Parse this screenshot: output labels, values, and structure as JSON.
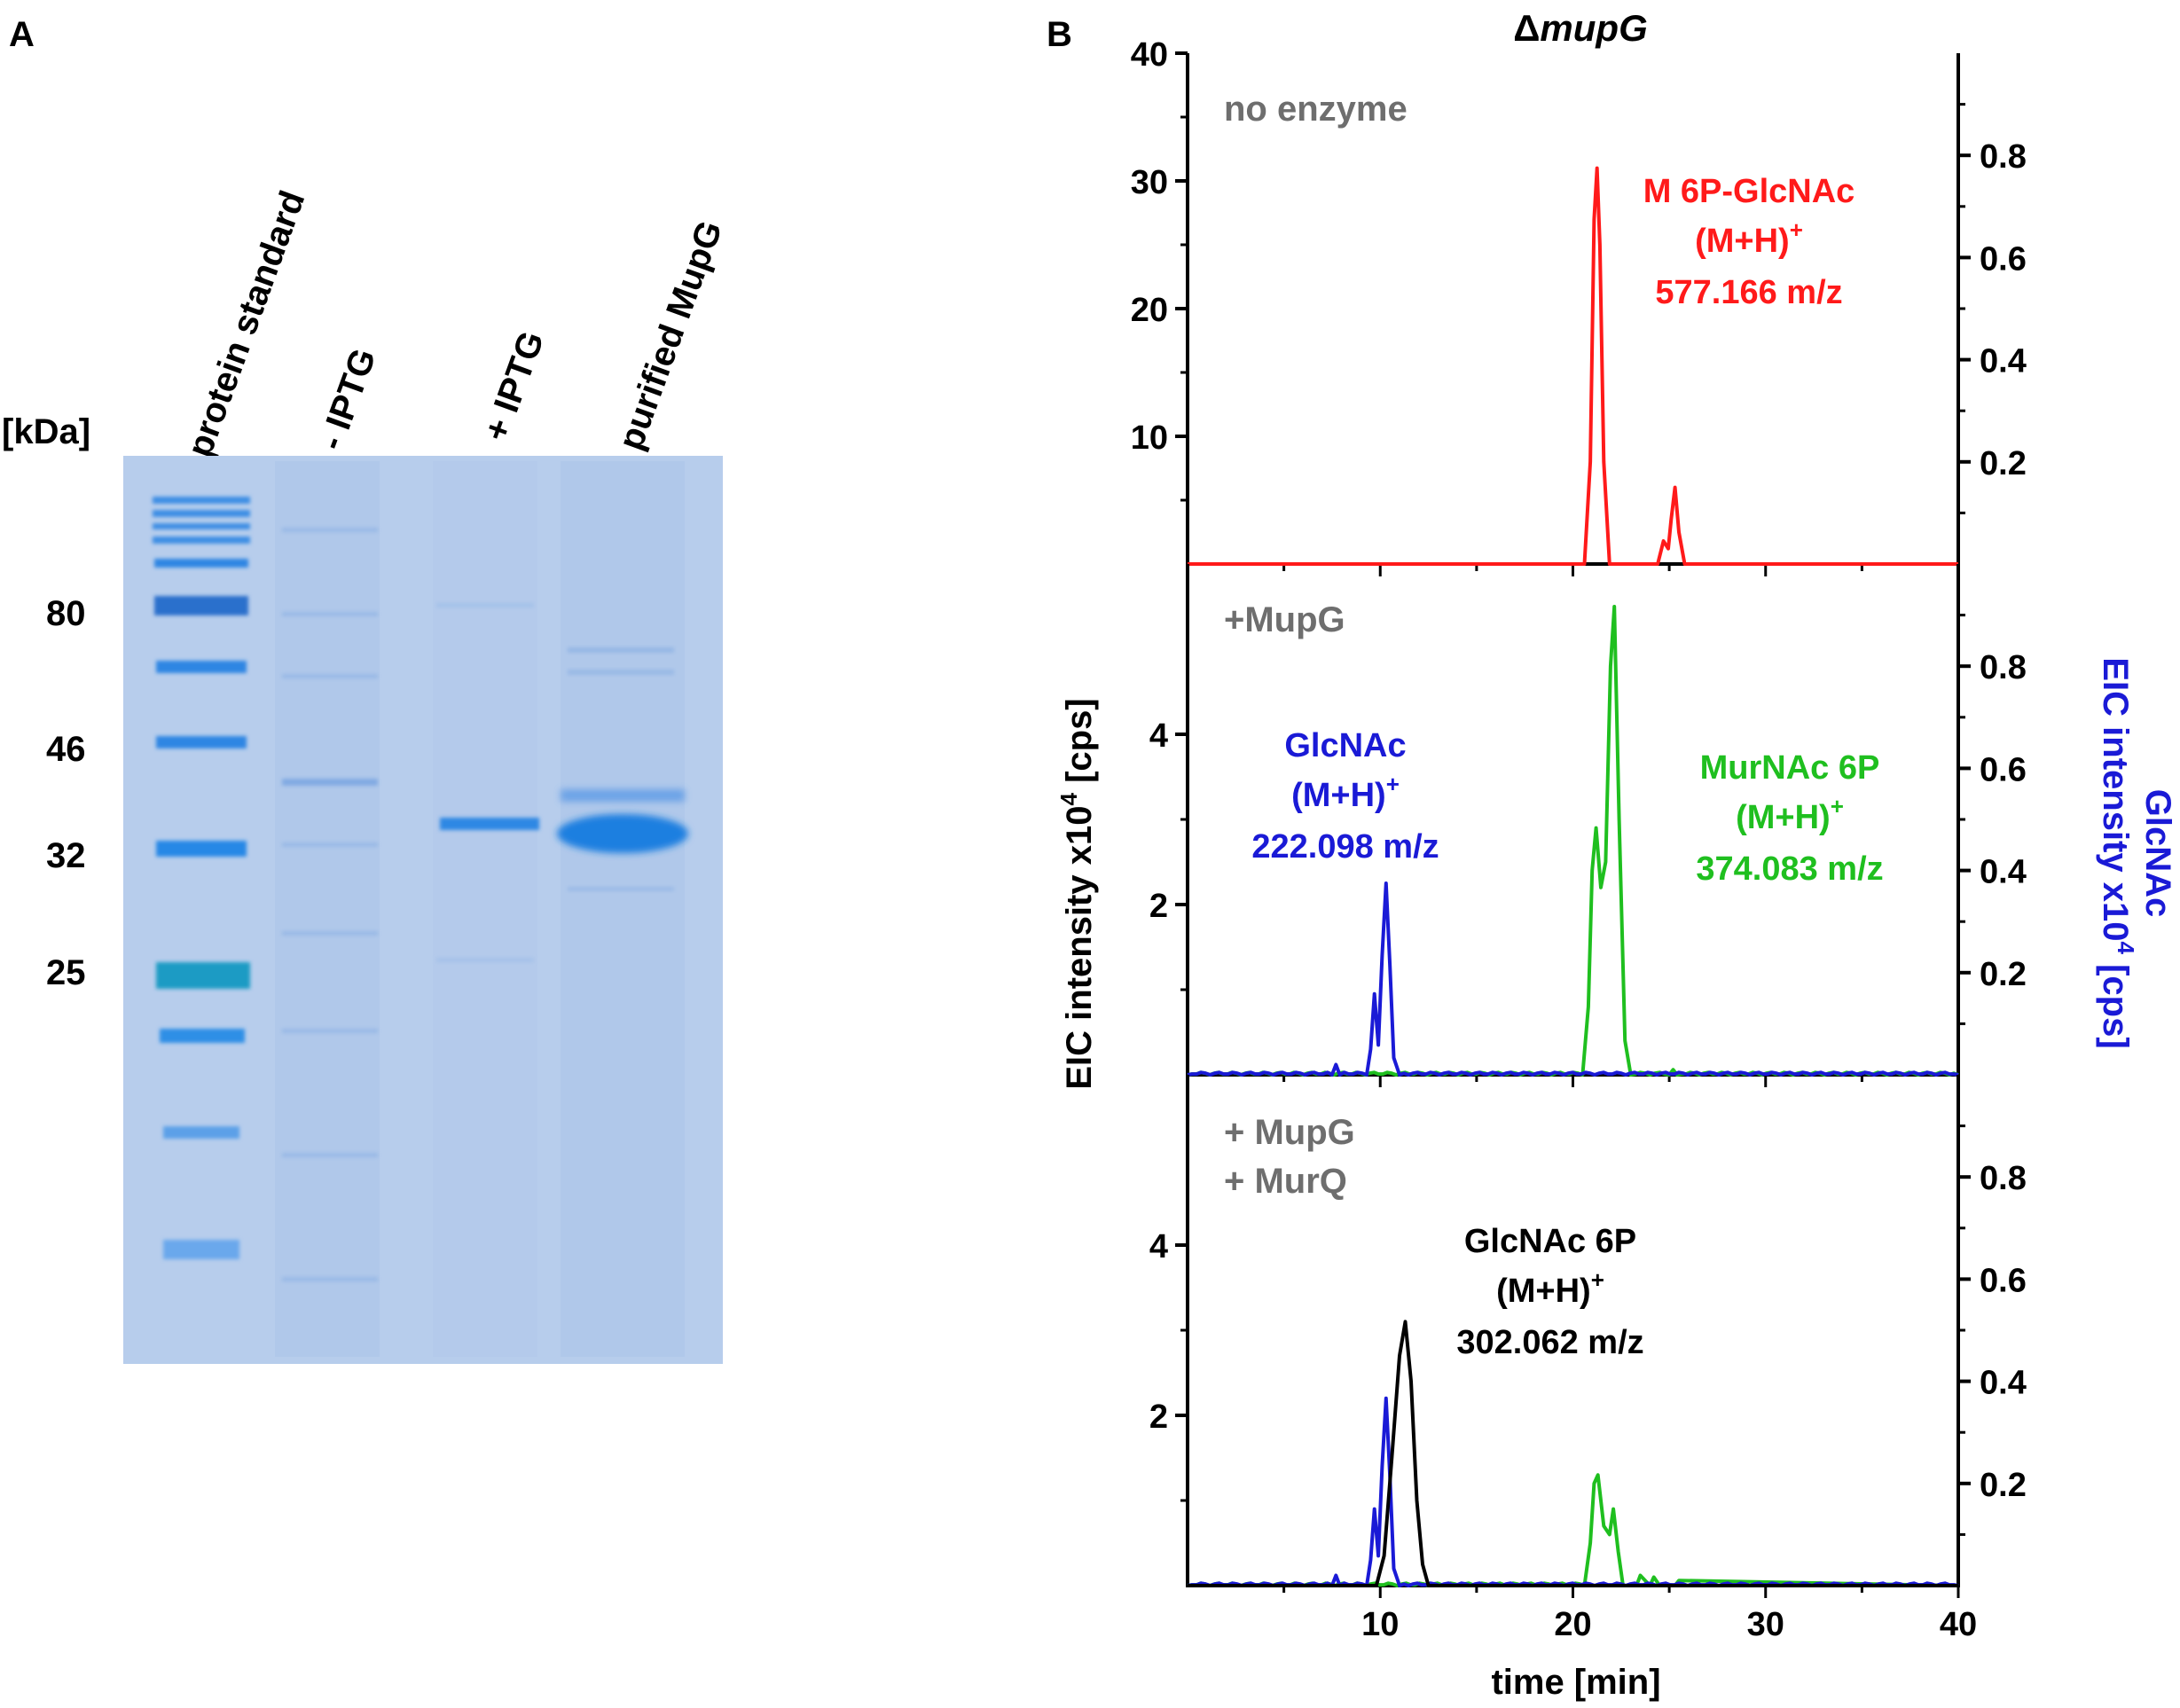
{
  "panel_a": {
    "label": "A",
    "kda_label": "[kDa]",
    "lane_labels": [
      "protein standard",
      "- IPTG",
      "+ IPTG",
      "purified MupG"
    ],
    "markers": [
      {
        "label": "80",
        "kda": 80
      },
      {
        "label": "46",
        "kda": 46
      },
      {
        "label": "32",
        "kda": 32
      },
      {
        "label": "25",
        "kda": 25
      }
    ],
    "gel_color": "#b7cdec",
    "band_color": "#1e7fe0"
  },
  "panel_b": {
    "label": "B",
    "title_delta": "Δ",
    "title_gene": "mupG",
    "y_axis_left": {
      "text": "EIC intensity x10",
      "sup": "4",
      "unit": " [cps]"
    },
    "y_axis_right": {
      "line1": "GlcNAc",
      "line2": "EIC intensity x10",
      "sup": "4",
      "unit": " [cps]",
      "color": "#1a1ad6"
    },
    "x_axis": {
      "label": "time [min]",
      "ticks": [
        "10",
        "20",
        "30",
        "40"
      ],
      "range": [
        0,
        40
      ]
    },
    "colors": {
      "red": "#ff1a1a",
      "green": "#1fbf1f",
      "blue": "#1a1ad6",
      "black": "#000000",
      "gray": "#6e6e6e"
    }
  },
  "chart_data": [
    {
      "type": "line",
      "panel": "no enzyme",
      "condition_label": [
        "no enzyme"
      ],
      "x_range": [
        0,
        40
      ],
      "left_ticks": [
        "10",
        "20",
        "30",
        "40"
      ],
      "left_range": [
        0,
        40
      ],
      "right_ticks": [
        "0.2",
        "0.4",
        "0.6",
        "0.8"
      ],
      "right_range": [
        0,
        1.0
      ],
      "annotations": [
        {
          "lines": [
            "M 6P-GlcNAc",
            "(M+H)",
            "577.166 m/z"
          ],
          "sup": "+",
          "color": "#ff1a1a"
        }
      ],
      "series": [
        {
          "color": "#ff1a1a",
          "x": [
            0,
            20.6,
            20.9,
            21.1,
            21.25,
            21.4,
            21.6,
            21.9,
            24.4,
            24.7,
            24.95,
            25.1,
            25.3,
            25.5,
            25.8,
            40
          ],
          "y": [
            0,
            0,
            8,
            27,
            31,
            25,
            8,
            0,
            0,
            1.8,
            1.2,
            3.5,
            6,
            2.5,
            0,
            0
          ]
        }
      ]
    },
    {
      "type": "line",
      "panel": "+MupG",
      "condition_label": [
        "+MupG"
      ],
      "x_range": [
        0,
        40
      ],
      "left_ticks": [
        "2",
        "4"
      ],
      "left_range": [
        0,
        6
      ],
      "right_ticks": [
        "0.2",
        "0.4",
        "0.6",
        "0.8"
      ],
      "right_range": [
        0,
        1.0
      ],
      "annotations": [
        {
          "lines": [
            "GlcNAc",
            "(M+H)",
            "222.098 m/z"
          ],
          "sup": "+",
          "color": "#1a1ad6"
        },
        {
          "lines": [
            "MurNAc 6P",
            "(M+H)",
            "374.083 m/z"
          ],
          "sup": "+",
          "color": "#1fbf1f"
        }
      ],
      "series": [
        {
          "color": "#1fbf1f",
          "x": [
            0,
            20.5,
            20.8,
            21.0,
            21.2,
            21.45,
            21.7,
            21.95,
            22.15,
            22.4,
            22.7,
            23.0,
            25.0,
            25.2,
            25.4,
            40
          ],
          "y": [
            0,
            0,
            0.8,
            2.4,
            2.9,
            2.2,
            2.5,
            4.8,
            5.5,
            3.0,
            0.4,
            0,
            0,
            0.06,
            0,
            0
          ]
        },
        {
          "color": "#1a1ad6",
          "x": [
            0,
            7.5,
            7.7,
            7.9,
            9.3,
            9.5,
            9.7,
            9.9,
            10.1,
            10.3,
            10.5,
            10.7,
            11.0,
            40
          ],
          "y": [
            0,
            0,
            0.12,
            0,
            0,
            0.3,
            0.95,
            0.35,
            1.4,
            2.25,
            1.3,
            0.2,
            0,
            0
          ]
        }
      ]
    },
    {
      "type": "line",
      "panel": "+ MupG + MurQ",
      "condition_label": [
        "+ MupG",
        "+ MurQ"
      ],
      "x_range": [
        0,
        40
      ],
      "left_ticks": [
        "2",
        "4"
      ],
      "left_range": [
        0,
        6
      ],
      "right_ticks": [
        "0.2",
        "0.4",
        "0.6",
        "0.8"
      ],
      "right_range": [
        0,
        1.0
      ],
      "annotations": [
        {
          "lines": [
            "GlcNAc 6P",
            "(M+H)",
            "302.062 m/z"
          ],
          "sup": "+",
          "color": "#000000"
        }
      ],
      "series": [
        {
          "color": "#1fbf1f",
          "x": [
            0,
            20.6,
            20.9,
            21.1,
            21.3,
            21.6,
            21.9,
            22.1,
            22.35,
            22.6,
            23.3,
            23.5,
            24.0,
            24.2,
            24.5,
            25.3,
            25.5,
            40
          ],
          "y": [
            0,
            0,
            0.5,
            1.2,
            1.3,
            0.7,
            0.6,
            0.9,
            0.4,
            0,
            0,
            0.12,
            0,
            0.1,
            0,
            0,
            0.06,
            0
          ]
        },
        {
          "color": "#1a1ad6",
          "x": [
            0,
            7.5,
            7.7,
            7.9,
            9.3,
            9.5,
            9.7,
            9.9,
            10.1,
            10.3,
            10.5,
            10.7,
            11.0,
            40
          ],
          "y": [
            0,
            0,
            0.12,
            0,
            0,
            0.3,
            0.9,
            0.35,
            1.4,
            2.2,
            1.3,
            0.2,
            0,
            0
          ]
        },
        {
          "color": "#000000",
          "x": [
            0,
            9.8,
            10.2,
            10.6,
            11.0,
            11.3,
            11.6,
            11.9,
            12.2,
            12.5,
            40
          ],
          "y": [
            0,
            0,
            0.35,
            1.5,
            2.7,
            3.1,
            2.4,
            1.0,
            0.25,
            0,
            0
          ]
        }
      ]
    }
  ]
}
